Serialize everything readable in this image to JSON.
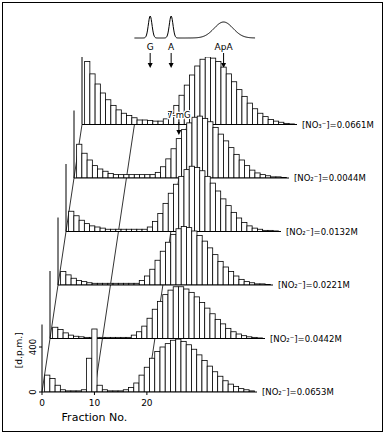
{
  "chart_data": {
    "type": "bar",
    "x_label": "Fraction No.",
    "y_label": "[d.p.m.]",
    "x": [
      1,
      2,
      3,
      4,
      5,
      6,
      7,
      8,
      9,
      10,
      11,
      12,
      13,
      14,
      15,
      16,
      17,
      18,
      19,
      20,
      21,
      22,
      23,
      24,
      25,
      26,
      27,
      28,
      29,
      30,
      31,
      32,
      33,
      34,
      35,
      36,
      37,
      38,
      39,
      40
    ],
    "xlim": [
      0,
      41
    ],
    "xticks": [
      0,
      10,
      20
    ],
    "ylim": [
      0,
      600
    ],
    "yticks": [
      0,
      400
    ],
    "grid": false,
    "markers": [
      {
        "label": "G",
        "x": 13
      },
      {
        "label": "A",
        "x": 17
      },
      {
        "label": "ApA",
        "x": 27
      }
    ],
    "annotations": [
      {
        "text": "7-mG",
        "x": 20,
        "series": 1
      }
    ],
    "series": [
      {
        "name": "[NO₃⁻]=0.0661M",
        "values": [
          560,
          450,
          360,
          280,
          220,
          170,
          130,
          100,
          80,
          60,
          40,
          40,
          35,
          30,
          30,
          50,
          100,
          170,
          260,
          350,
          440,
          520,
          580,
          600,
          590,
          560,
          510,
          450,
          380,
          310,
          250,
          190,
          140,
          100,
          70,
          45,
          30,
          20,
          10,
          5
        ]
      },
      {
        "name": "[NO₂⁻]=0.0044M",
        "values": [
          300,
          220,
          160,
          110,
          80,
          60,
          40,
          30,
          30,
          30,
          30,
          30,
          30,
          30,
          30,
          50,
          100,
          170,
          260,
          350,
          430,
          490,
          540,
          550,
          530,
          500,
          450,
          390,
          330,
          270,
          210,
          160,
          110,
          70,
          45,
          30,
          20,
          10,
          10,
          5
        ]
      },
      {
        "name": "[NO₂⁻]=0.0132M",
        "values": [
          180,
          140,
          100,
          70,
          50,
          40,
          30,
          20,
          20,
          20,
          20,
          20,
          20,
          20,
          20,
          40,
          90,
          160,
          250,
          340,
          420,
          490,
          550,
          580,
          570,
          540,
          490,
          430,
          360,
          290,
          230,
          170,
          120,
          80,
          50,
          30,
          20,
          10,
          10,
          5
        ]
      },
      {
        "name": "[NO₂⁻]=0.0221M",
        "values": [
          120,
          90,
          60,
          40,
          30,
          20,
          15,
          15,
          15,
          15,
          15,
          15,
          15,
          15,
          15,
          40,
          80,
          140,
          220,
          300,
          380,
          450,
          500,
          520,
          510,
          480,
          440,
          390,
          330,
          270,
          210,
          160,
          120,
          80,
          50,
          30,
          20,
          10,
          10,
          5
        ]
      },
      {
        "name": "[NO₂⁻]=0.0442M",
        "values": [
          100,
          80,
          50,
          30,
          20,
          15,
          10,
          10,
          10,
          10,
          10,
          10,
          10,
          10,
          10,
          30,
          60,
          110,
          180,
          260,
          330,
          390,
          430,
          460,
          460,
          440,
          410,
          370,
          320,
          270,
          220,
          170,
          130,
          90,
          60,
          40,
          25,
          15,
          10,
          5
        ]
      },
      {
        "name": "[NO₂⁻]=0.0653M",
        "values": [
          150,
          120,
          60,
          20,
          10,
          10,
          10,
          20,
          300,
          560,
          60,
          20,
          10,
          10,
          10,
          20,
          40,
          80,
          150,
          220,
          300,
          360,
          400,
          430,
          460,
          470,
          450,
          420,
          380,
          330,
          280,
          230,
          180,
          140,
          100,
          70,
          50,
          30,
          20,
          10
        ]
      }
    ]
  }
}
